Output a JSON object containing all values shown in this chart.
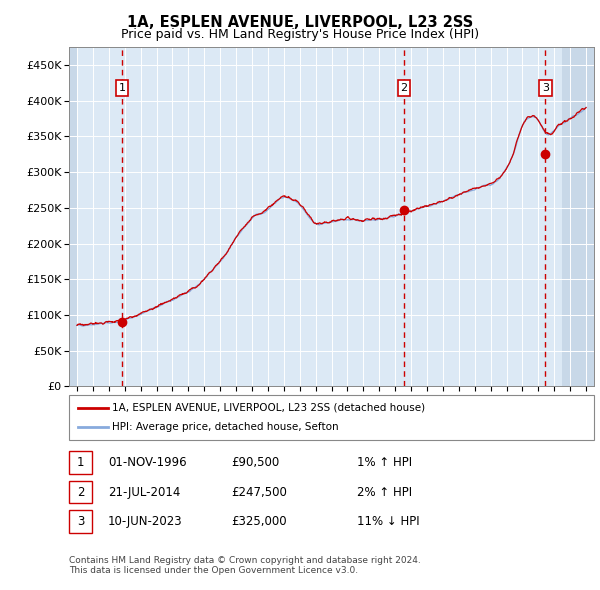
{
  "title": "1A, ESPLEN AVENUE, LIVERPOOL, L23 2SS",
  "subtitle": "Price paid vs. HM Land Registry's House Price Index (HPI)",
  "ylabel_ticks": [
    "£0",
    "£50K",
    "£100K",
    "£150K",
    "£200K",
    "£250K",
    "£300K",
    "£350K",
    "£400K",
    "£450K"
  ],
  "ytick_values": [
    0,
    50000,
    100000,
    150000,
    200000,
    250000,
    300000,
    350000,
    400000,
    450000
  ],
  "xlim_start": 1993.5,
  "xlim_end": 2026.5,
  "ylim": [
    0,
    475000
  ],
  "sale_points": [
    {
      "date_num": 1996.83,
      "price": 90500,
      "label": "1"
    },
    {
      "date_num": 2014.55,
      "price": 247500,
      "label": "2"
    },
    {
      "date_num": 2023.44,
      "price": 325000,
      "label": "3"
    }
  ],
  "vline_dates": [
    1996.83,
    2014.55,
    2023.44
  ],
  "legend_line1": "1A, ESPLEN AVENUE, LIVERPOOL, L23 2SS (detached house)",
  "legend_line2": "HPI: Average price, detached house, Sefton",
  "table_rows": [
    [
      "1",
      "01-NOV-1996",
      "£90,500",
      "1% ↑ HPI"
    ],
    [
      "2",
      "21-JUL-2014",
      "£247,500",
      "2% ↑ HPI"
    ],
    [
      "3",
      "10-JUN-2023",
      "£325,000",
      "11% ↓ HPI"
    ]
  ],
  "footnote": "Contains HM Land Registry data © Crown copyright and database right 2024.\nThis data is licensed under the Open Government Licence v3.0.",
  "bg_color": "#dce9f5",
  "hatch_color": "#c8d8e8",
  "grid_color": "#ffffff",
  "line_red": "#cc0000",
  "line_blue": "#88aadd",
  "vline_color": "#cc0000",
  "xtick_years": [
    1994,
    1995,
    1996,
    1997,
    1998,
    1999,
    2000,
    2001,
    2002,
    2003,
    2004,
    2005,
    2006,
    2007,
    2008,
    2009,
    2010,
    2011,
    2012,
    2013,
    2014,
    2015,
    2016,
    2017,
    2018,
    2019,
    2020,
    2021,
    2022,
    2023,
    2024,
    2025,
    2026
  ],
  "hatch_left_end": 1994.0,
  "hatch_right_start": 2024.5,
  "data_start": 1994.0,
  "data_end": 2026.0
}
